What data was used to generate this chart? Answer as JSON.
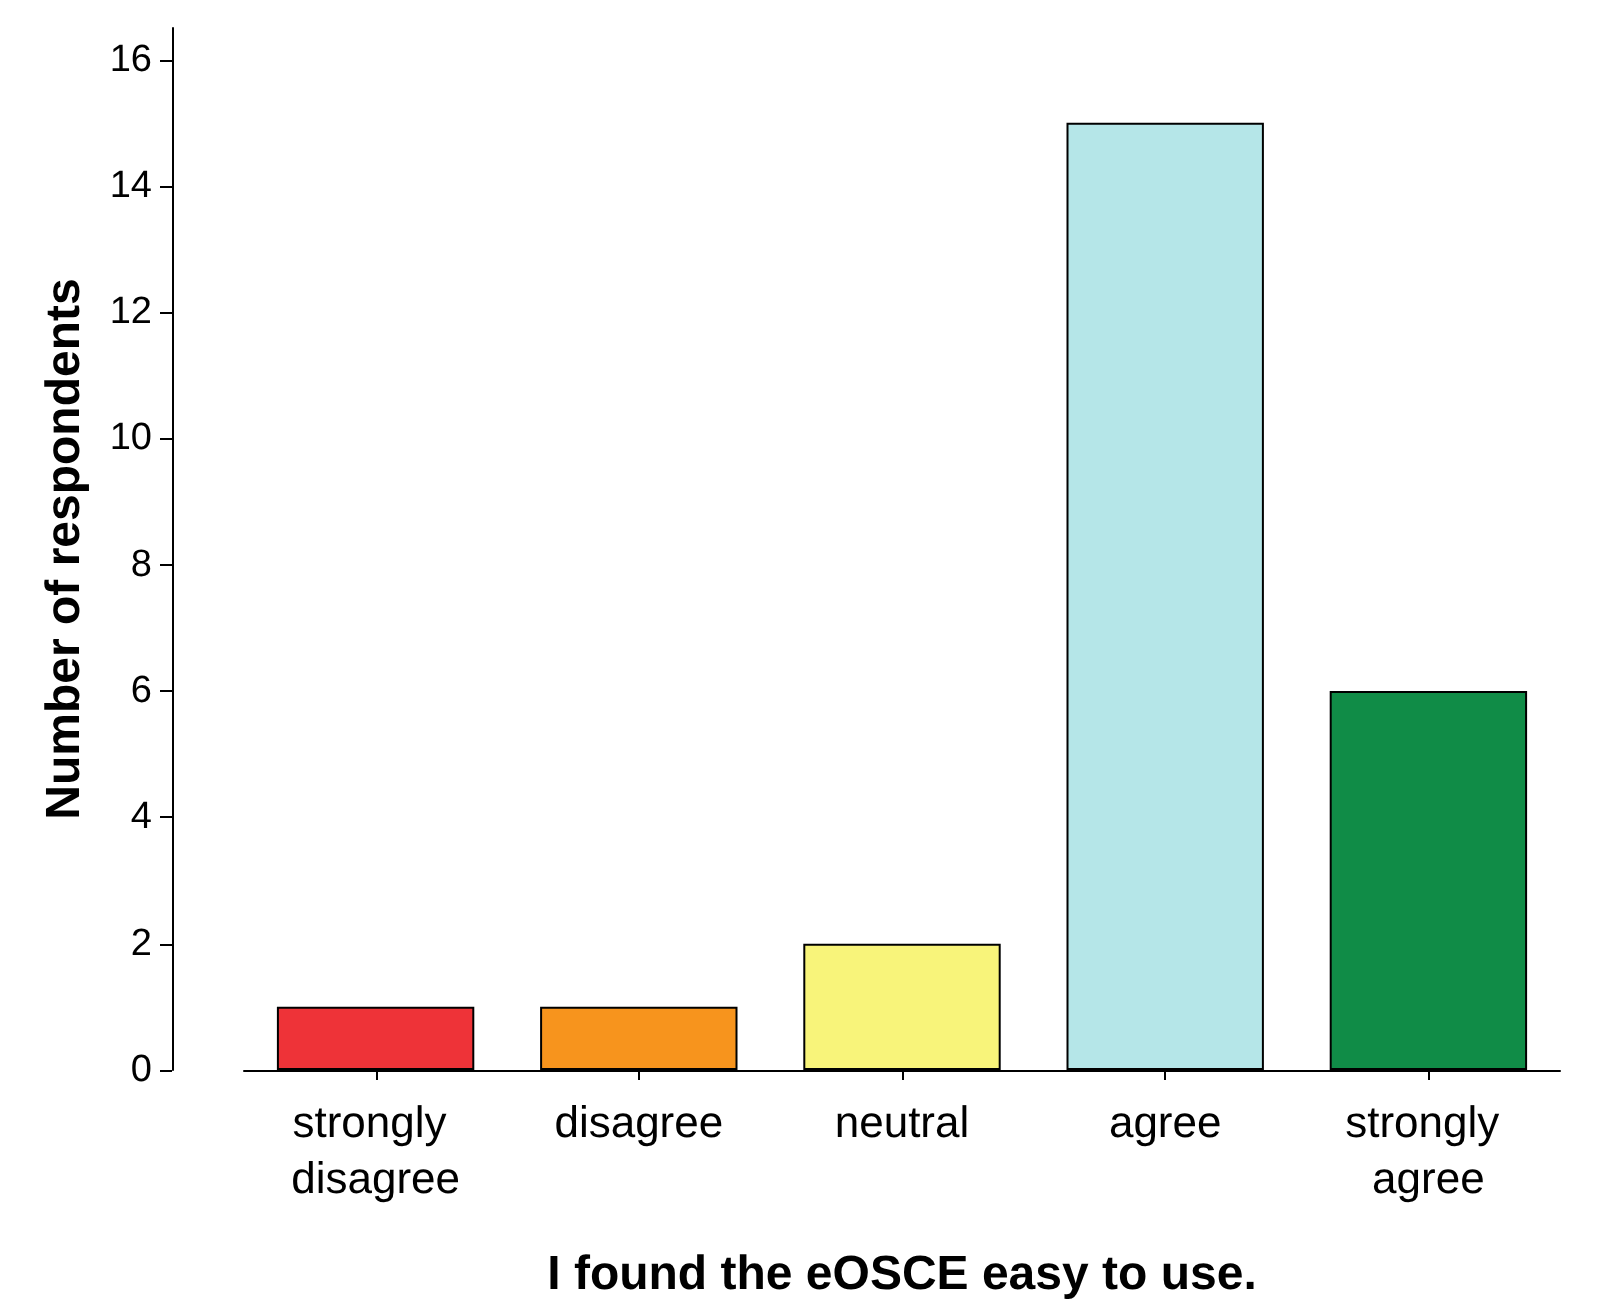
{
  "chart_data": {
    "type": "bar",
    "xlabel": "I found the eOSCE easy to use.",
    "ylabel": "Number of respondents",
    "categories": [
      "strongly disagree",
      "disagree",
      "neutral",
      "agree",
      "strongly agree"
    ],
    "values": [
      1,
      1,
      2,
      15,
      6
    ],
    "colors": [
      "#ee3338",
      "#f7941d",
      "#f8f47a",
      "#b5e6e8",
      "#108c47"
    ],
    "ylim": [
      0,
      16.5
    ],
    "yticks": [
      0,
      2,
      4,
      6,
      8,
      10,
      12,
      14,
      16
    ],
    "grid": false
  }
}
